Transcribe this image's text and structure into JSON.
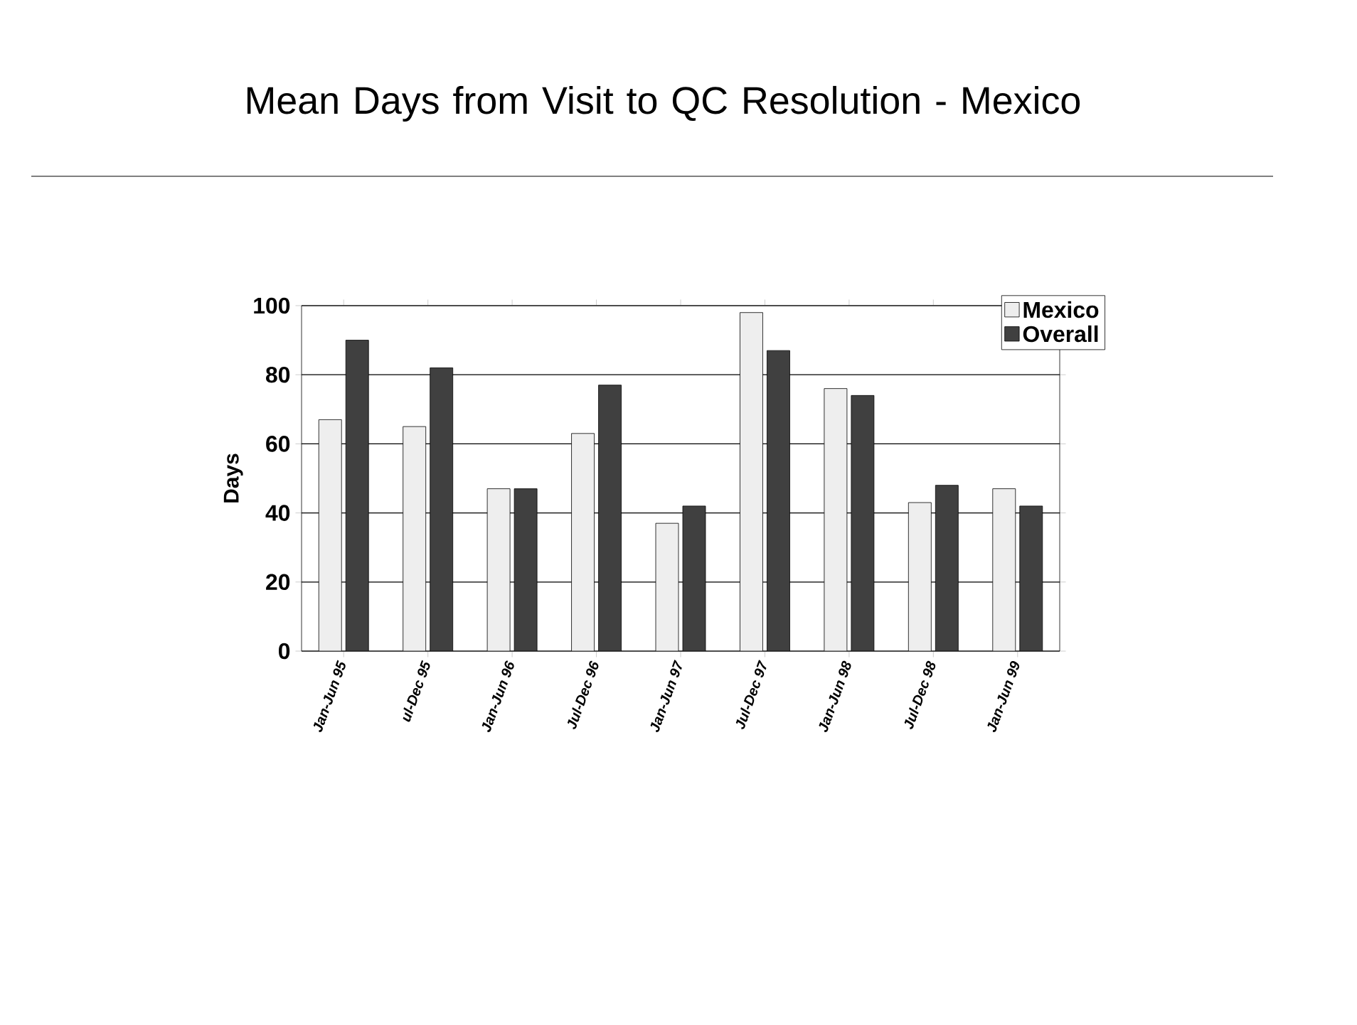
{
  "chart_data": {
    "type": "bar",
    "title": "Mean Days from Visit to QC Resolution - Mexico",
    "ylabel": "Days",
    "categories": [
      "Jan-Jun 95",
      "ul-Dec 95",
      "Jan-Jun 96",
      "Jul-Dec 96",
      "Jan-Jun 97",
      "Jul-Dec 97",
      "Jan-Jun 98",
      "Jul-Dec 98",
      "Jan-Jun 99"
    ],
    "series": [
      {
        "name": "Mexico",
        "color": "#eeeeee",
        "values": [
          67,
          65,
          47,
          63,
          37,
          98,
          76,
          43,
          47
        ]
      },
      {
        "name": "Overall",
        "color": "#404040",
        "values": [
          90,
          82,
          47,
          77,
          42,
          87,
          74,
          48,
          42
        ]
      }
    ],
    "ylim": [
      0,
      100
    ],
    "yticks": [
      0,
      20,
      40,
      60,
      80,
      100
    ],
    "grid": "y",
    "legend": "top right"
  }
}
